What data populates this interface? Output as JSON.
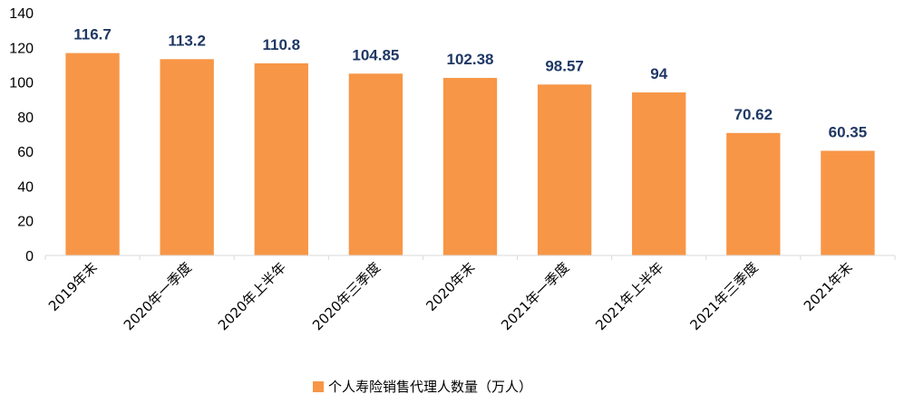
{
  "chart_data": {
    "type": "bar",
    "categories": [
      "2019年末",
      "2020年一季度",
      "2020年上半年",
      "2020年三季度",
      "2020年末",
      "2021年一季度",
      "2021年上半年",
      "2021年三季度",
      "2021年末"
    ],
    "series": [
      {
        "name": "个人寿险销售代理人数量（万人）",
        "values": [
          116.7,
          113.2,
          110.8,
          104.85,
          102.38,
          98.57,
          94,
          70.62,
          60.35
        ],
        "color": "#f79646"
      }
    ],
    "value_labels": [
      "116.7",
      "113.2",
      "110.8",
      "104.85",
      "102.38",
      "98.57",
      "94",
      "70.62",
      "60.35"
    ],
    "y_ticks": [
      "0",
      "20",
      "40",
      "60",
      "80",
      "100",
      "120",
      "140"
    ],
    "ylim": [
      0,
      140
    ],
    "grid": false,
    "legend_position": "bottom",
    "label_color": "#1f3864"
  }
}
